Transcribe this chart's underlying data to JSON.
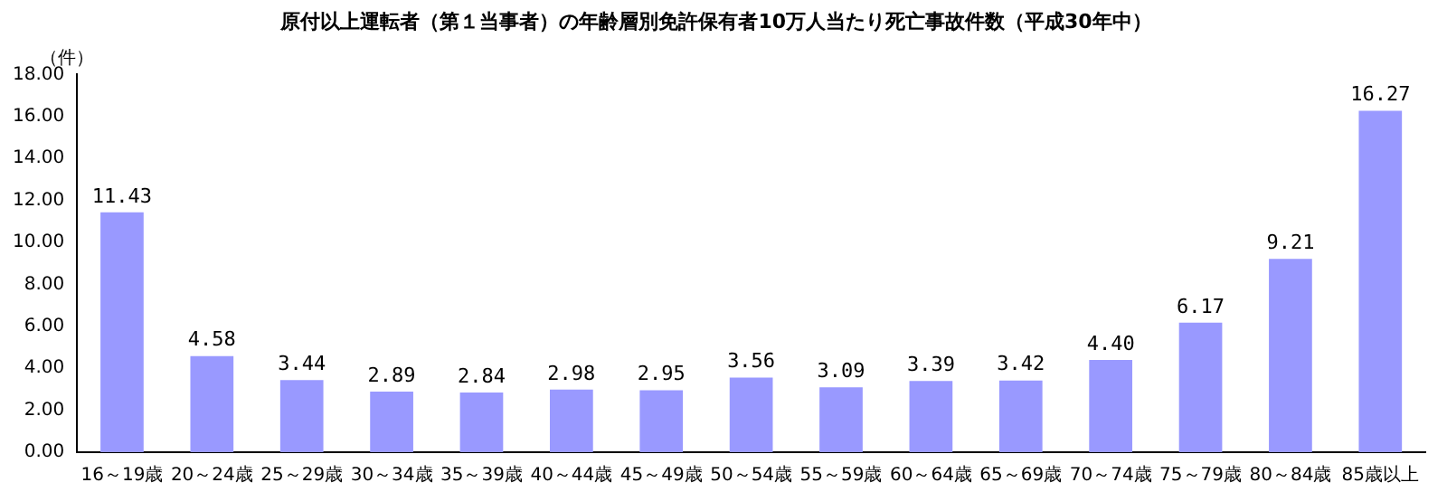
{
  "chart_data": {
    "type": "bar",
    "title": "原付以上運転者（第１当事者）の年齢層別免許保有者10万人当たり死亡事故件数（平成30年中）",
    "ylabel": "（件）",
    "categories": [
      "16～19歳",
      "20～24歳",
      "25～29歳",
      "30～34歳",
      "35～39歳",
      "40～44歳",
      "45～49歳",
      "50～54歳",
      "55～59歳",
      "60～64歳",
      "65～69歳",
      "70～74歳",
      "75～79歳",
      "80～84歳",
      "85歳以上"
    ],
    "values": [
      11.43,
      4.58,
      3.44,
      2.89,
      2.84,
      2.98,
      2.95,
      3.56,
      3.09,
      3.39,
      3.42,
      4.4,
      6.17,
      9.21,
      16.27
    ],
    "value_labels": [
      "11.43",
      "4.58",
      "3.44",
      "2.89",
      "2.84",
      "2.98",
      "2.95",
      "3.56",
      "3.09",
      "3.39",
      "3.42",
      "4.40",
      "6.17",
      "9.21",
      "16.27"
    ],
    "color": "#9999ff",
    "ylim": [
      0,
      18
    ],
    "yticks": [
      {
        "value": 0,
        "label": "0.00"
      },
      {
        "value": 2,
        "label": "2.00"
      },
      {
        "value": 4,
        "label": "4.00"
      },
      {
        "value": 6,
        "label": "6.00"
      },
      {
        "value": 8,
        "label": "8.00"
      },
      {
        "value": 10,
        "label": "10.00"
      },
      {
        "value": 12,
        "label": "12.00"
      },
      {
        "value": 14,
        "label": "14.00"
      },
      {
        "value": 16,
        "label": "16.00"
      },
      {
        "value": 18,
        "label": "18.00"
      }
    ],
    "grid": false,
    "legend": false
  }
}
